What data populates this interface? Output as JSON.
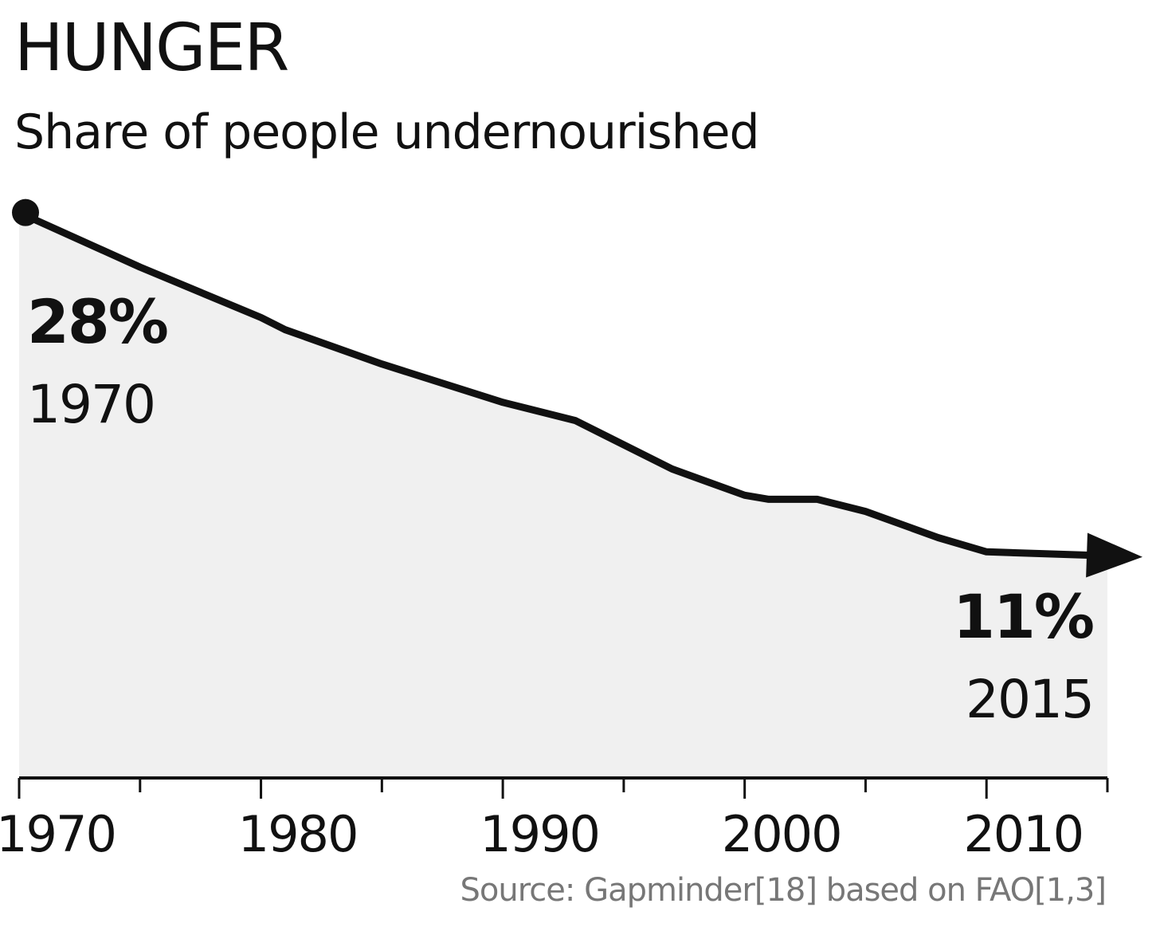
{
  "chart_data": {
    "type": "area",
    "title": "HUNGER",
    "subtitle": "Share of people undernourished",
    "xlabel": "",
    "ylabel": "",
    "xlim": [
      1970,
      2015
    ],
    "ylim": [
      0,
      30
    ],
    "x_ticks": [
      1970,
      1980,
      1990,
      2000,
      2010
    ],
    "grid": false,
    "series": [
      {
        "x": [
          1970,
          1975,
          1980,
          1981,
          1985,
          1990,
          1991,
          1993,
          1997,
          2000,
          2001,
          2003,
          2005,
          2008,
          2010,
          2015
        ],
        "values": [
          28,
          25.3,
          22.8,
          22.2,
          20.5,
          18.6,
          18.3,
          17.7,
          15.3,
          14,
          13.8,
          13.8,
          13.2,
          11.9,
          11.2,
          11
        ]
      }
    ],
    "annotations": {
      "start": {
        "value_label": "28%",
        "year_label": "1970"
      },
      "end": {
        "value_label": "11%",
        "year_label": "2015"
      }
    },
    "source": "Source: Gapminder[18] based on FAO[1,3]",
    "colors": {
      "line": "#111111",
      "area": "#f0f0f0",
      "text": "#111111",
      "source_text": "#777777"
    }
  }
}
